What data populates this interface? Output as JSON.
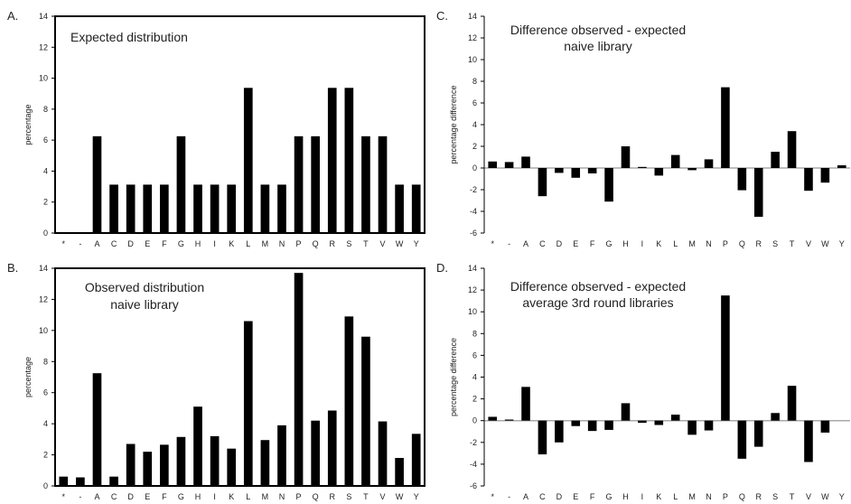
{
  "colors": {
    "bar": "#000000",
    "axis": "#000000",
    "zero_line": "#aaaaaa",
    "background": "#ffffff"
  },
  "chart_data": [
    {
      "panel": "A.",
      "type": "bar",
      "title_lines": [
        "Expected distribution"
      ],
      "xlabel": "",
      "ylabel": "percentage",
      "ylim": [
        0,
        14
      ],
      "yticks": [
        0,
        2,
        4,
        6,
        8,
        10,
        12,
        14
      ],
      "grid": false,
      "categories": [
        "*",
        "-",
        "A",
        "C",
        "D",
        "E",
        "F",
        "G",
        "H",
        "I",
        "K",
        "L",
        "M",
        "N",
        "P",
        "Q",
        "R",
        "S",
        "T",
        "V",
        "W",
        "Y"
      ],
      "values": [
        0,
        0,
        6.25,
        3.125,
        3.125,
        3.125,
        3.125,
        6.25,
        3.125,
        3.125,
        3.125,
        9.375,
        3.125,
        3.125,
        6.25,
        6.25,
        9.375,
        9.375,
        6.25,
        6.25,
        3.125,
        3.125
      ]
    },
    {
      "panel": "B.",
      "type": "bar",
      "title_lines": [
        "Observed distribution",
        "naive library"
      ],
      "xlabel": "",
      "ylabel": "percentage",
      "ylim": [
        0,
        14
      ],
      "yticks": [
        0,
        2,
        4,
        6,
        8,
        10,
        12,
        14
      ],
      "grid": false,
      "categories": [
        "*",
        "-",
        "A",
        "C",
        "D",
        "E",
        "F",
        "G",
        "H",
        "I",
        "K",
        "L",
        "M",
        "N",
        "P",
        "Q",
        "R",
        "S",
        "T",
        "V",
        "W",
        "Y"
      ],
      "values": [
        0.6,
        0.55,
        7.25,
        0.6,
        2.7,
        2.2,
        2.65,
        3.15,
        5.1,
        3.2,
        2.4,
        10.6,
        2.95,
        3.9,
        13.7,
        4.2,
        4.85,
        10.9,
        9.6,
        4.15,
        1.8,
        3.35
      ]
    },
    {
      "panel": "C.",
      "type": "bar",
      "title_lines": [
        "Difference observed - expected",
        "naive library"
      ],
      "xlabel": "",
      "ylabel": "percentage difference",
      "ylim": [
        -6,
        14
      ],
      "yticks": [
        -6,
        -4,
        -2,
        0,
        2,
        4,
        6,
        8,
        10,
        12,
        14
      ],
      "grid": false,
      "categories": [
        "*",
        "-",
        "A",
        "C",
        "D",
        "E",
        "F",
        "G",
        "H",
        "I",
        "K",
        "L",
        "M",
        "N",
        "P",
        "Q",
        "R",
        "S",
        "T",
        "V",
        "W",
        "Y"
      ],
      "values": [
        0.6,
        0.55,
        1.05,
        -2.6,
        -0.45,
        -0.9,
        -0.5,
        -3.1,
        2.0,
        0.1,
        -0.7,
        1.2,
        -0.2,
        0.8,
        7.45,
        -2.05,
        -4.5,
        1.5,
        3.4,
        -2.1,
        -1.35,
        0.25
      ]
    },
    {
      "panel": "D.",
      "type": "bar",
      "title_lines": [
        "Difference observed - expected",
        "average 3rd round libraries"
      ],
      "xlabel": "",
      "ylabel": "percentage difference",
      "ylim": [
        -6,
        14
      ],
      "yticks": [
        -6,
        -4,
        -2,
        0,
        2,
        4,
        6,
        8,
        10,
        12,
        14
      ],
      "grid": false,
      "categories": [
        "*",
        "-",
        "A",
        "C",
        "D",
        "E",
        "F",
        "G",
        "H",
        "I",
        "K",
        "L",
        "M",
        "N",
        "P",
        "Q",
        "R",
        "S",
        "T",
        "V",
        "W",
        "Y"
      ],
      "values": [
        0.35,
        0.1,
        3.1,
        -3.1,
        -2.0,
        -0.5,
        -0.95,
        -0.85,
        1.6,
        -0.2,
        -0.4,
        0.55,
        -1.3,
        -0.9,
        11.5,
        -3.5,
        -2.4,
        0.7,
        3.2,
        -3.8,
        -1.1,
        0.0
      ]
    }
  ]
}
